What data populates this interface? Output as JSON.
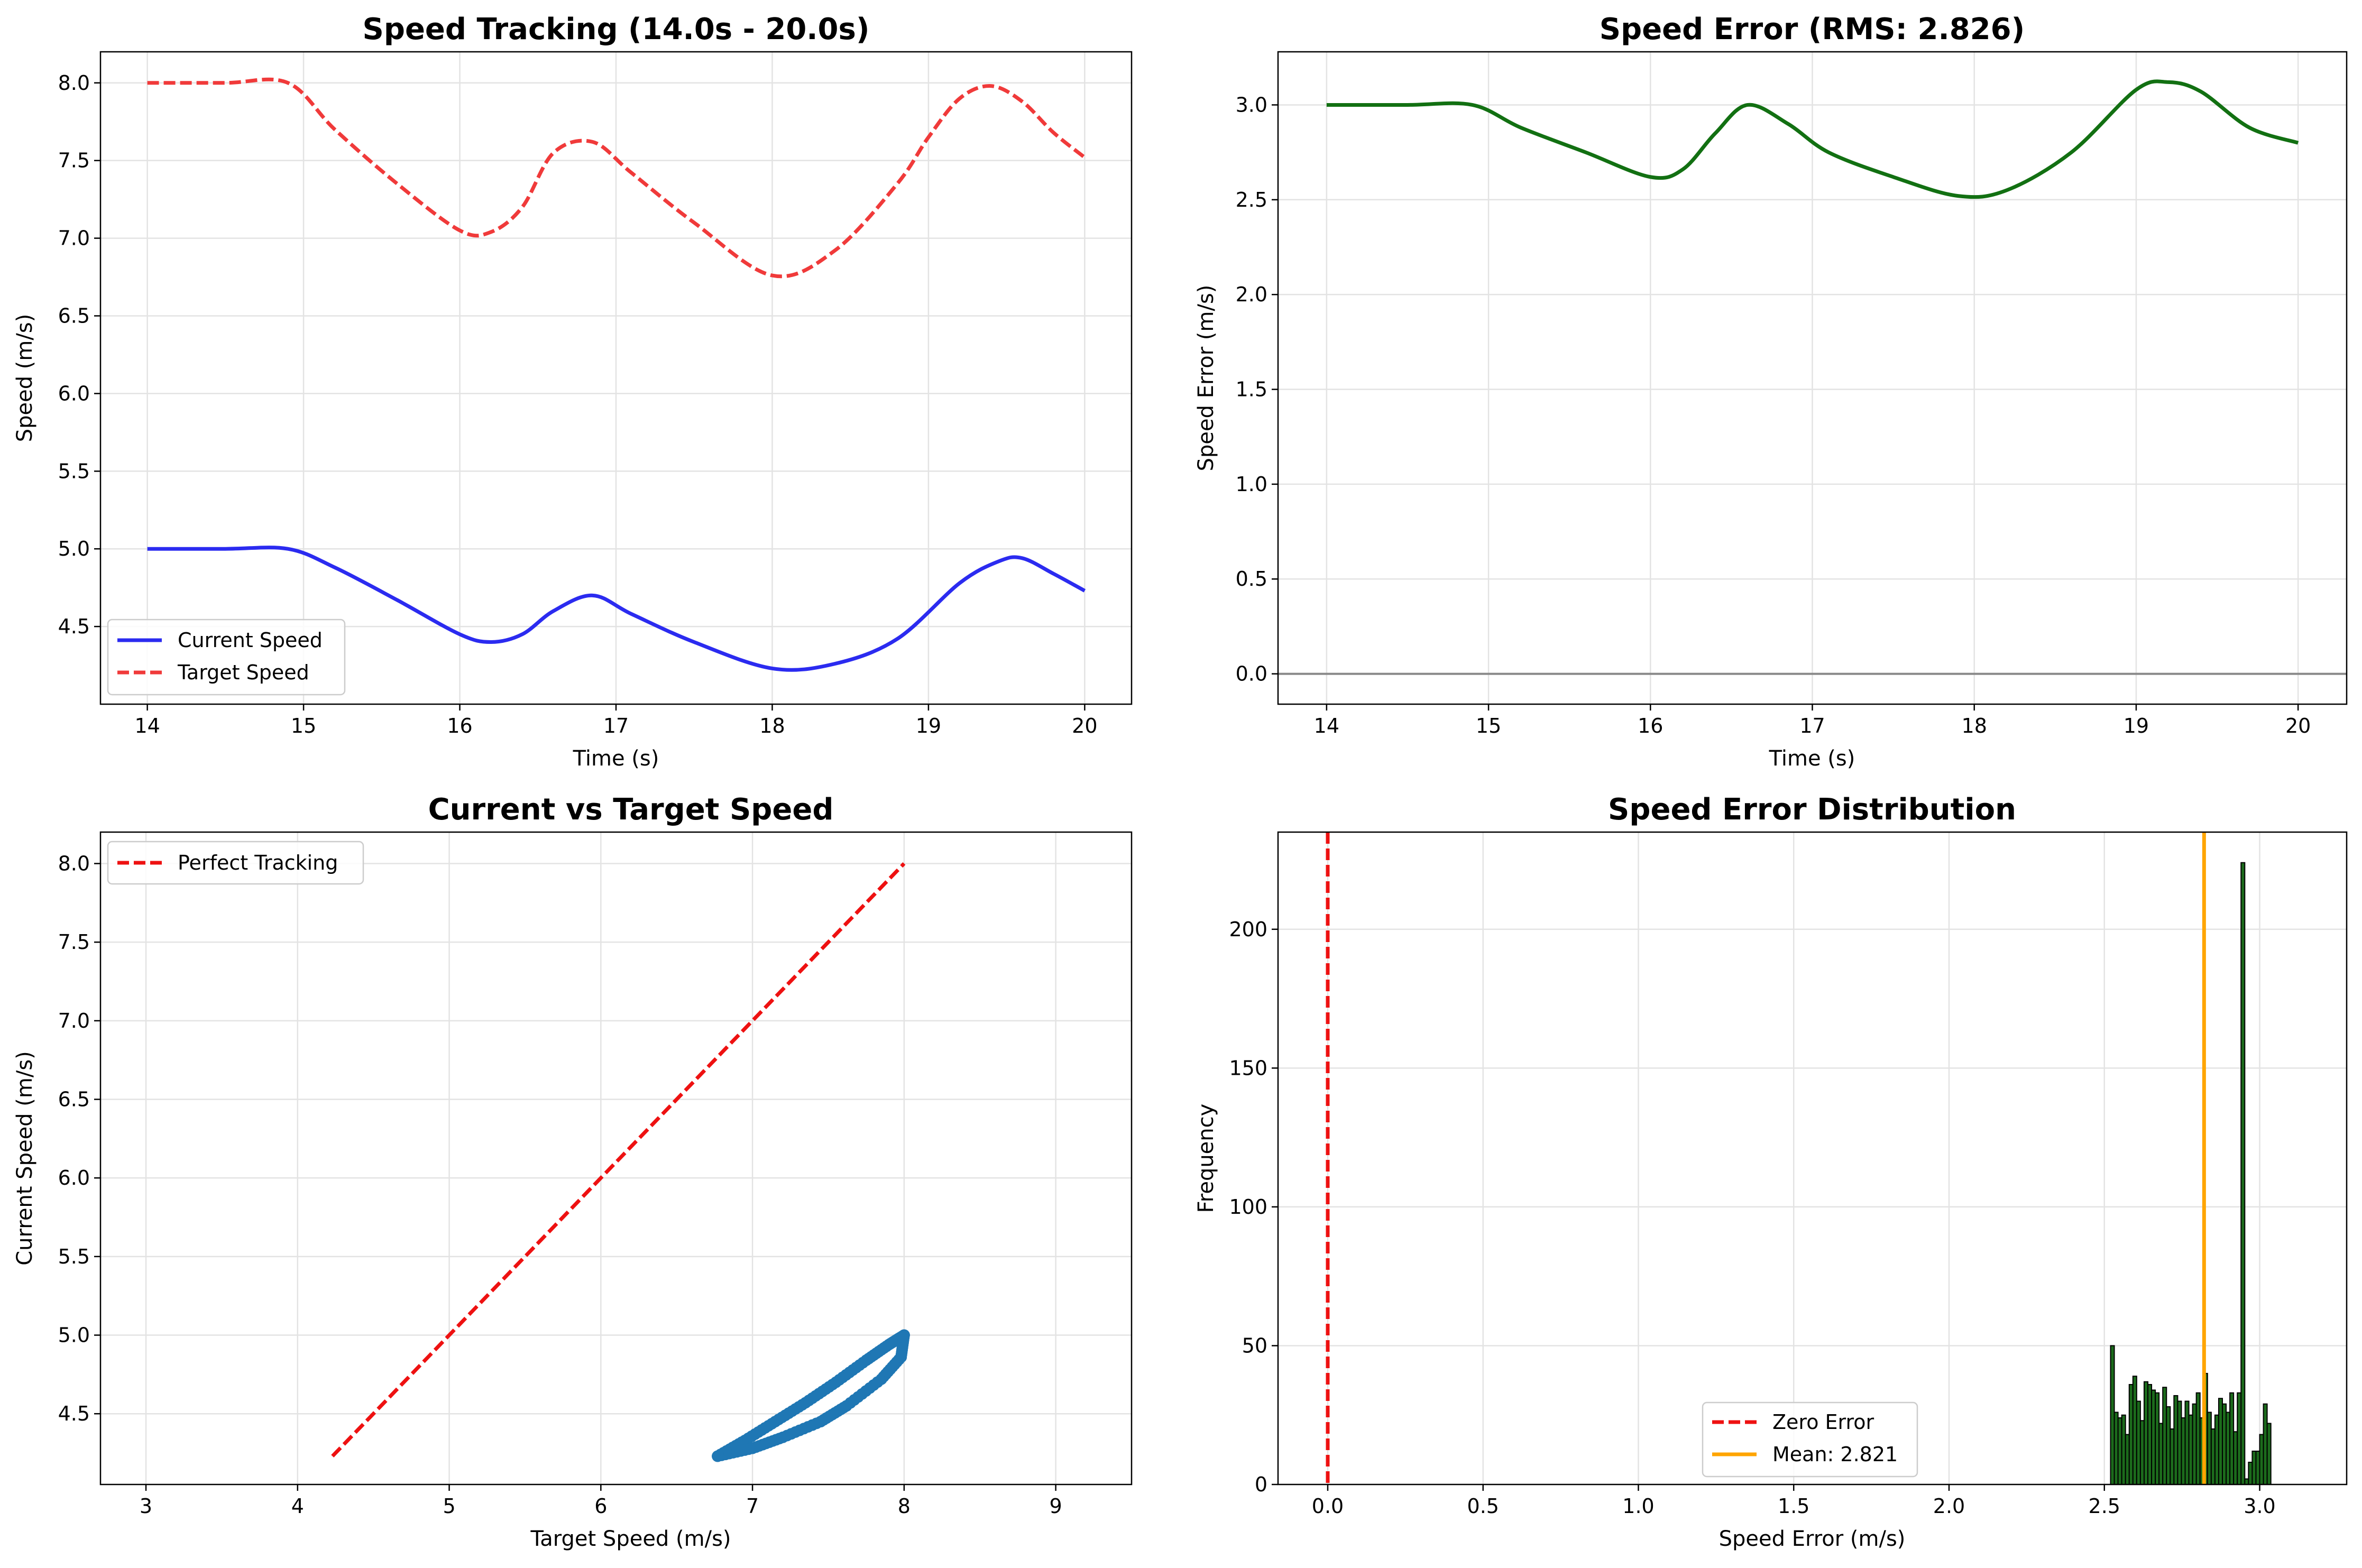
{
  "chart_data": [
    {
      "id": "p1",
      "type": "line",
      "title": "Speed Tracking (14.0s - 20.0s)",
      "xlabel": "Time (s)",
      "ylabel": "Speed (m/s)",
      "xlim": [
        13.7,
        20.3
      ],
      "ylim": [
        4.0,
        8.2
      ],
      "xticks": [
        "14",
        "15",
        "16",
        "17",
        "18",
        "19",
        "20"
      ],
      "yticks": [
        "4.5",
        "5.0",
        "5.5",
        "6.0",
        "6.5",
        "7.0",
        "7.5",
        "8.0"
      ],
      "grid": true,
      "legend_position": "lower-left",
      "series": [
        {
          "name": "Current Speed",
          "color": "#2b2bf0",
          "style": "solid",
          "x": [
            14.0,
            14.5,
            14.9,
            15.2,
            15.6,
            16.0,
            16.2,
            16.4,
            16.6,
            16.85,
            17.1,
            17.5,
            18.0,
            18.4,
            18.8,
            19.2,
            19.45,
            19.6,
            19.8,
            20.0
          ],
          "y": [
            5.0,
            5.0,
            5.0,
            4.88,
            4.67,
            4.45,
            4.4,
            4.45,
            4.6,
            4.7,
            4.58,
            4.4,
            4.23,
            4.26,
            4.42,
            4.78,
            4.92,
            4.94,
            4.84,
            4.73
          ]
        },
        {
          "name": "Target Speed",
          "color": "#f03a3a",
          "style": "dashed",
          "x": [
            14.0,
            14.5,
            14.9,
            15.2,
            15.6,
            16.0,
            16.2,
            16.4,
            16.6,
            16.85,
            17.1,
            17.5,
            18.0,
            18.4,
            18.8,
            19.0,
            19.2,
            19.4,
            19.6,
            19.8,
            20.0
          ],
          "y": [
            8.0,
            8.0,
            8.0,
            7.7,
            7.35,
            7.05,
            7.04,
            7.2,
            7.55,
            7.62,
            7.42,
            7.1,
            6.76,
            6.92,
            7.35,
            7.65,
            7.9,
            7.98,
            7.88,
            7.68,
            7.52
          ]
        }
      ]
    },
    {
      "id": "p2",
      "type": "line",
      "title": "Speed Error (RMS: 2.826)",
      "xlabel": "Time (s)",
      "ylabel": "Speed Error (m/s)",
      "xlim": [
        13.7,
        20.3
      ],
      "ylim": [
        -0.16,
        3.28
      ],
      "xticks": [
        "14",
        "15",
        "16",
        "17",
        "18",
        "19",
        "20"
      ],
      "yticks": [
        "0.0",
        "0.5",
        "1.0",
        "1.5",
        "2.0",
        "2.5",
        "3.0"
      ],
      "grid": true,
      "reference_line": {
        "y": 0.0,
        "color": "#888888"
      },
      "series": [
        {
          "color": "#127012",
          "style": "solid",
          "x": [
            14.0,
            14.5,
            14.9,
            15.2,
            15.6,
            16.0,
            16.2,
            16.4,
            16.6,
            16.85,
            17.1,
            17.5,
            17.9,
            18.2,
            18.6,
            19.0,
            19.2,
            19.4,
            19.7,
            20.0
          ],
          "y": [
            3.0,
            3.0,
            3.0,
            2.88,
            2.75,
            2.62,
            2.66,
            2.85,
            3.0,
            2.9,
            2.75,
            2.62,
            2.52,
            2.55,
            2.75,
            3.08,
            3.12,
            3.07,
            2.88,
            2.8
          ]
        }
      ]
    },
    {
      "id": "p3",
      "type": "scatter",
      "title": "Current vs Target Speed",
      "xlabel": "Target Speed (m/s)",
      "ylabel": "Current Speed (m/s)",
      "xlim": [
        2.7,
        9.5
      ],
      "ylim": [
        4.05,
        8.2
      ],
      "xticks": [
        "3",
        "4",
        "5",
        "6",
        "7",
        "8",
        "9"
      ],
      "yticks": [
        "4.5",
        "5.0",
        "5.5",
        "6.0",
        "6.5",
        "7.0",
        "7.5",
        "8.0"
      ],
      "grid": true,
      "legend_position": "top-left",
      "reference": {
        "name": "Perfect Tracking",
        "color": "#ee1111",
        "style": "dashed",
        "x": [
          4.23,
          8.0
        ],
        "y": [
          4.23,
          8.0
        ]
      },
      "series": [
        {
          "color": "#1f77b4",
          "upper_x": [
            6.77,
            6.95,
            7.15,
            7.35,
            7.55,
            7.75,
            7.9,
            8.0
          ],
          "upper_y": [
            4.23,
            4.33,
            4.45,
            4.57,
            4.7,
            4.84,
            4.94,
            5.0
          ],
          "lower_x": [
            6.77,
            7.0,
            7.2,
            7.45,
            7.62,
            7.85,
            7.98,
            8.0
          ],
          "lower_y": [
            4.23,
            4.28,
            4.35,
            4.45,
            4.55,
            4.72,
            4.86,
            5.0
          ]
        }
      ]
    },
    {
      "id": "p4",
      "type": "bar",
      "title": "Speed Error Distribution",
      "xlabel": "Speed Error (m/s)",
      "ylabel": "Frequency",
      "xlim": [
        -0.16,
        3.28
      ],
      "ylim": [
        0,
        235
      ],
      "xticks": [
        "0.0",
        "0.5",
        "1.0",
        "1.5",
        "2.0",
        "2.5",
        "3.0"
      ],
      "yticks": [
        "0",
        "50",
        "100",
        "150",
        "200"
      ],
      "grid": true,
      "legend_position": "lower-center",
      "bin_start": 2.52,
      "bin_width": 0.012,
      "values": [
        50,
        26,
        24,
        25,
        18,
        36,
        39,
        30,
        23,
        37,
        36,
        34,
        33,
        22,
        35,
        28,
        20,
        32,
        30,
        24,
        30,
        25,
        29,
        33,
        24,
        40,
        26,
        20,
        25,
        31,
        29,
        26,
        33,
        19,
        33,
        224,
        2,
        8,
        12,
        12,
        18,
        29,
        22
      ],
      "bar_color": "#1c6b1c",
      "zero_line": {
        "name": "Zero Error",
        "x": 0.0,
        "color": "#ee1111"
      },
      "mean_line": {
        "name": "Mean: 2.821",
        "x": 2.821,
        "color": "#ffa500"
      }
    }
  ]
}
